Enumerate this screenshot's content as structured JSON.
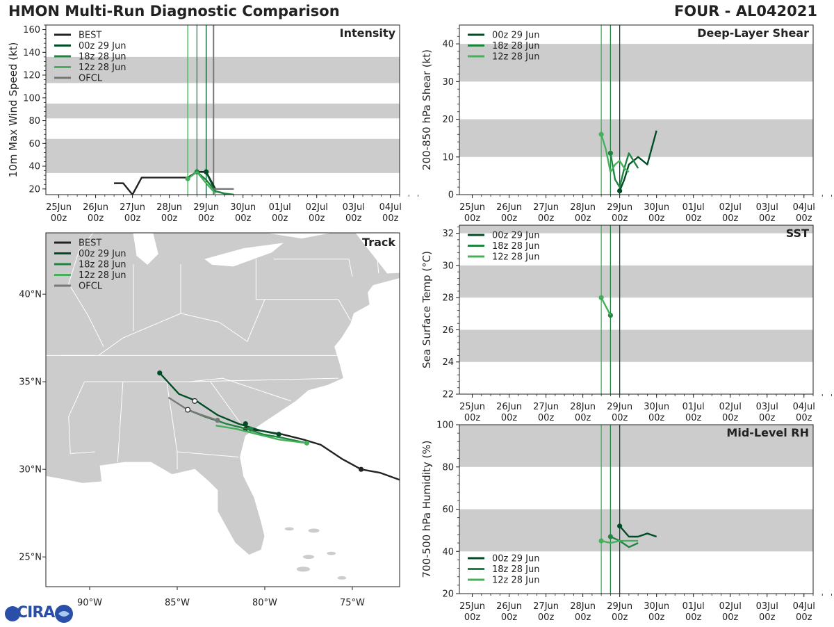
{
  "header": {
    "title": "HMON Multi-Run Diagnostic Comparison",
    "storm": "FOUR - AL042021"
  },
  "logo": {
    "text": "CIRA"
  },
  "colors": {
    "best": "#222222",
    "run_00z": "#004d25",
    "run_18z": "#1e8440",
    "run_12z": "#44b05a",
    "ofcl": "#777777",
    "band": "#cccccc",
    "land": "#cccccc",
    "border": "#ffffff"
  },
  "time_axis": {
    "ticks": [
      "25Jun\n00z",
      "26Jun\n00z",
      "27Jun\n00z",
      "28Jun\n00z",
      "29Jun\n00z",
      "30Jun\n00z",
      "01Jul\n00z",
      "02Jul\n00z",
      "03Jul\n00z",
      "04Jul\n00z"
    ],
    "xlim": [
      -0.35,
      9.25
    ],
    "run_markers": [
      3.5,
      3.75,
      4.0
    ]
  },
  "chart_data": [
    {
      "id": "intensity",
      "type": "line",
      "title": "Intensity",
      "ylabel": "10m Max Wind Speed (kt)",
      "ylim": [
        15,
        164
      ],
      "yticks": [
        20,
        40,
        60,
        80,
        100,
        120,
        140,
        160
      ],
      "bands": [
        [
          34,
          64
        ],
        [
          82,
          95
        ],
        [
          113,
          136
        ]
      ],
      "legend": [
        "BEST",
        "00z 29 Jun",
        "18z 28 Jun",
        "12z 28 Jun",
        "OFCL"
      ],
      "extra_markers": [
        {
          "x": 4.2,
          "color": "ofcl"
        }
      ],
      "series": [
        {
          "name": "BEST",
          "color": "best",
          "x": [
            1.5,
            1.75,
            2.0,
            2.25,
            2.5,
            2.75,
            3.0,
            3.25,
            3.5,
            3.75,
            4.0,
            4.25
          ],
          "y": [
            25,
            25,
            15,
            30,
            30,
            30,
            30,
            30,
            30,
            35,
            35,
            20
          ],
          "markers": [
            3.75,
            4.0
          ]
        },
        {
          "name": "00z 29 Jun",
          "color": "run_00z",
          "x": [
            4.0,
            4.25,
            4.5
          ],
          "y": [
            35,
            18,
            16
          ],
          "markers": [
            4.0
          ]
        },
        {
          "name": "18z 28 Jun",
          "color": "run_18z",
          "x": [
            3.75,
            4.0,
            4.25,
            4.5,
            4.75
          ],
          "y": [
            35,
            28,
            18,
            16,
            15
          ],
          "markers": [
            3.75
          ]
        },
        {
          "name": "12z 28 Jun",
          "color": "run_12z",
          "x": [
            3.5,
            3.75,
            4.0,
            4.25
          ],
          "y": [
            29,
            35,
            25,
            16
          ],
          "markers": [
            3.5
          ]
        },
        {
          "name": "OFCL",
          "color": "ofcl",
          "x": [
            4.2,
            4.5,
            4.75
          ],
          "y": [
            20,
            20,
            20
          ],
          "markers": []
        }
      ]
    },
    {
      "id": "shear",
      "type": "line",
      "title": "Deep-Layer Shear",
      "ylabel": "200-850 hPa Shear (kt)",
      "ylim": [
        0,
        45
      ],
      "yticks": [
        0,
        10,
        20,
        30,
        40
      ],
      "bands": [
        [
          10,
          20
        ],
        [
          30,
          40
        ]
      ],
      "legend": [
        "00z 29 Jun",
        "18z 28 Jun",
        "12z 28 Jun"
      ],
      "series": [
        {
          "name": "00z 29 Jun",
          "color": "run_00z",
          "x": [
            4.0,
            4.125,
            4.25,
            4.5,
            4.625,
            4.75,
            5.0
          ],
          "y": [
            1,
            4,
            8,
            10,
            9,
            8,
            17
          ],
          "markers": [
            4.0
          ]
        },
        {
          "name": "18z 28 Jun",
          "color": "run_18z",
          "x": [
            3.75,
            3.875,
            4.0,
            4.125,
            4.25,
            4.375,
            4.5
          ],
          "y": [
            11,
            4,
            2,
            7,
            11,
            9,
            7
          ],
          "markers": [
            3.75
          ]
        },
        {
          "name": "12z 28 Jun",
          "color": "run_12z",
          "x": [
            3.5,
            3.625,
            3.75,
            3.875,
            4.0,
            4.125,
            4.25
          ],
          "y": [
            16,
            12,
            6,
            8,
            9,
            7,
            6
          ],
          "markers": [
            3.5
          ]
        }
      ]
    },
    {
      "id": "sst",
      "type": "line",
      "title": "SST",
      "ylabel": "Sea Surface Temp (°C)",
      "ylim": [
        22,
        32.5
      ],
      "yticks": [
        22,
        24,
        26,
        28,
        30,
        32
      ],
      "bands": [
        [
          24,
          26
        ],
        [
          28,
          30
        ],
        [
          32,
          32.5
        ]
      ],
      "legend": [
        "00z 29 Jun",
        "18z 28 Jun",
        "12z 28 Jun"
      ],
      "series": [
        {
          "name": "18z 28 Jun",
          "color": "run_18z",
          "x": [
            3.75
          ],
          "y": [
            26.9
          ],
          "markers": [
            3.75
          ]
        },
        {
          "name": "12z 28 Jun",
          "color": "run_12z",
          "x": [
            3.5,
            3.75
          ],
          "y": [
            28,
            26.9
          ],
          "markers": [
            3.5
          ]
        }
      ]
    },
    {
      "id": "rh",
      "type": "line",
      "title": "Mid-Level RH",
      "ylabel": "700-500 hPa Humidity (%)",
      "ylim": [
        20,
        100
      ],
      "yticks": [
        20,
        40,
        60,
        80,
        100
      ],
      "bands": [
        [
          40,
          60
        ],
        [
          80,
          100
        ]
      ],
      "legend": [
        "00z 29 Jun",
        "18z 28 Jun",
        "12z 28 Jun"
      ],
      "legend_pos": "bottom-left",
      "series": [
        {
          "name": "00z 29 Jun",
          "color": "run_00z",
          "x": [
            4.0,
            4.25,
            4.5,
            4.75,
            5.0
          ],
          "y": [
            52,
            47,
            47,
            48.5,
            47
          ],
          "markers": [
            4.0
          ]
        },
        {
          "name": "18z 28 Jun",
          "color": "run_18z",
          "x": [
            3.75,
            4.0,
            4.25,
            4.5
          ],
          "y": [
            47,
            45,
            42,
            44
          ],
          "markers": [
            3.75
          ]
        },
        {
          "name": "12z 28 Jun",
          "color": "run_12z",
          "x": [
            3.5,
            3.75,
            4.0,
            4.25,
            4.5
          ],
          "y": [
            45,
            44,
            45,
            45,
            45
          ],
          "markers": [
            3.5
          ]
        }
      ]
    },
    {
      "id": "track",
      "type": "line",
      "title": "Track",
      "xlim": [
        -92.5,
        -72.3
      ],
      "ylim": [
        23.3,
        43.5
      ],
      "xticks": [
        -90,
        -85,
        -80,
        -75
      ],
      "xtick_labels": [
        "90°W",
        "85°W",
        "80°W",
        "75°W"
      ],
      "yticks": [
        25,
        30,
        35,
        40
      ],
      "ytick_labels": [
        "25°N",
        "30°N",
        "35°N",
        "40°N"
      ],
      "legend": [
        "BEST",
        "00z 29 Jun",
        "18z 28 Jun",
        "12z 28 Jun",
        "OFCL"
      ],
      "series": [
        {
          "name": "BEST",
          "color": "best",
          "lon": [
            -72.3,
            -73.4,
            -74.5,
            -75.6,
            -76.8,
            -77.8,
            -79.0,
            -80.2,
            -81.1
          ],
          "lat": [
            29.4,
            29.8,
            30.0,
            30.6,
            31.4,
            31.7,
            32.0,
            32.2,
            32.3
          ],
          "markers": [
            [
              -74.5,
              30.0
            ],
            [
              -81.1,
              32.3
            ]
          ]
        },
        {
          "name": "00z 29 Jun",
          "color": "run_00z",
          "lon": [
            -86.0,
            -84.9,
            -83.9,
            -82.7,
            -81.5,
            -80.2,
            -79.2
          ],
          "lat": [
            35.5,
            34.3,
            33.9,
            33.1,
            32.6,
            32.2,
            32.0
          ],
          "markers": [
            [
              -86.0,
              35.5
            ],
            [
              -81.1,
              32.6
            ],
            [
              -79.2,
              32.0
            ]
          ]
        },
        {
          "name": "18z 28 Jun",
          "color": "run_18z",
          "lon": [
            -84.4,
            -83.4,
            -82.2,
            -81.0,
            -80.1,
            -79.0,
            -77.6
          ],
          "lat": [
            33.4,
            33.0,
            32.6,
            32.3,
            32.0,
            31.8,
            31.5
          ],
          "markers": [
            [
              -80.8,
              32.3
            ]
          ]
        },
        {
          "name": "12z 28 Jun",
          "color": "run_12z",
          "lon": [
            -82.8,
            -81.6,
            -80.4,
            -79.2,
            -77.6
          ],
          "lat": [
            32.5,
            32.3,
            32.0,
            31.7,
            31.5
          ],
          "markers": [
            [
              -77.6,
              31.5
            ]
          ]
        },
        {
          "name": "OFCL",
          "color": "ofcl",
          "lon": [
            -85.5,
            -84.4,
            -83.6,
            -82.7
          ],
          "lat": [
            34.1,
            33.4,
            33.1,
            32.8
          ],
          "markers": [
            [
              -82.7,
              32.8
            ]
          ]
        }
      ],
      "open_markers": [
        [
          -84.0,
          33.9
        ],
        [
          -84.4,
          33.4
        ]
      ]
    }
  ]
}
